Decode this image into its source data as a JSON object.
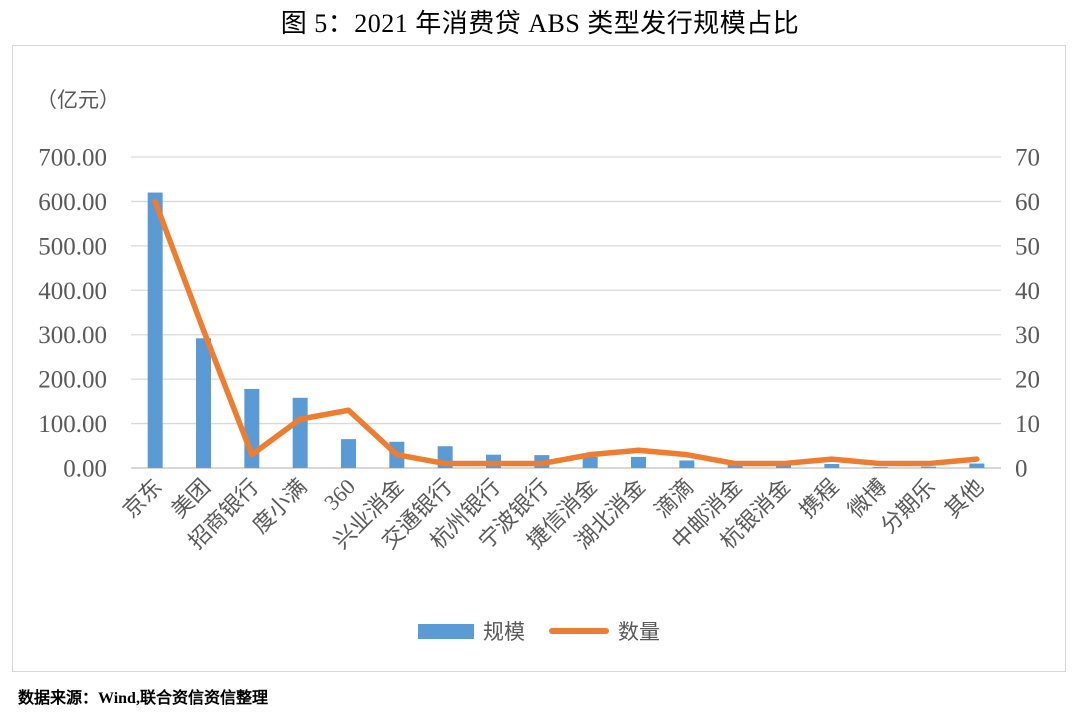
{
  "title": "图 5：2021 年消费贷 ABS 类型发行规模占比",
  "source": "数据来源：Wind,联合资信资信整理",
  "colors": {
    "bar": "#5B9BD5",
    "line": "#ED7D31",
    "grid": "#D9D9D9",
    "axis_line": "#BFBFBF",
    "axis_text": "#595959",
    "box_border": "#D6D6D6"
  },
  "chart_data": {
    "type": "bar+line",
    "title": "图 5：2021 年消费贷 ABS 类型发行规模占比",
    "unit_label": "（亿元）",
    "grid": true,
    "legend_position": "bottom",
    "categories": [
      "京东",
      "美团",
      "招商银行",
      "度小满",
      "360",
      "兴业消金",
      "交通银行",
      "杭州银行",
      "宁波银行",
      "捷信消金",
      "湖北消金",
      "滴滴",
      "中邮消金",
      "杭银消金",
      "携程",
      "微博",
      "分期乐",
      "其他"
    ],
    "series": [
      {
        "name": "规模",
        "series_type": "bar",
        "axis": "left",
        "color": "#5B9BD5",
        "values": [
          620,
          292,
          178,
          158,
          65,
          59,
          49,
          30,
          29,
          25,
          25,
          17,
          9,
          9,
          9,
          2,
          3,
          10
        ]
      },
      {
        "name": "数量",
        "series_type": "line",
        "axis": "right",
        "color": "#ED7D31",
        "values": [
          60,
          31,
          3,
          11,
          13,
          3,
          1,
          1,
          1,
          3,
          4,
          3,
          1,
          1,
          2,
          1,
          1,
          2
        ]
      }
    ],
    "left_axis": {
      "label": "（亿元）",
      "min": 0,
      "max": 700,
      "step": 100,
      "tick_labels": [
        "0.00",
        "100.00",
        "200.00",
        "300.00",
        "400.00",
        "500.00",
        "600.00",
        "700.00"
      ]
    },
    "right_axis": {
      "min": 0,
      "max": 70,
      "step": 10,
      "tick_labels": [
        "0",
        "10",
        "20",
        "30",
        "40",
        "50",
        "60",
        "70"
      ]
    }
  }
}
